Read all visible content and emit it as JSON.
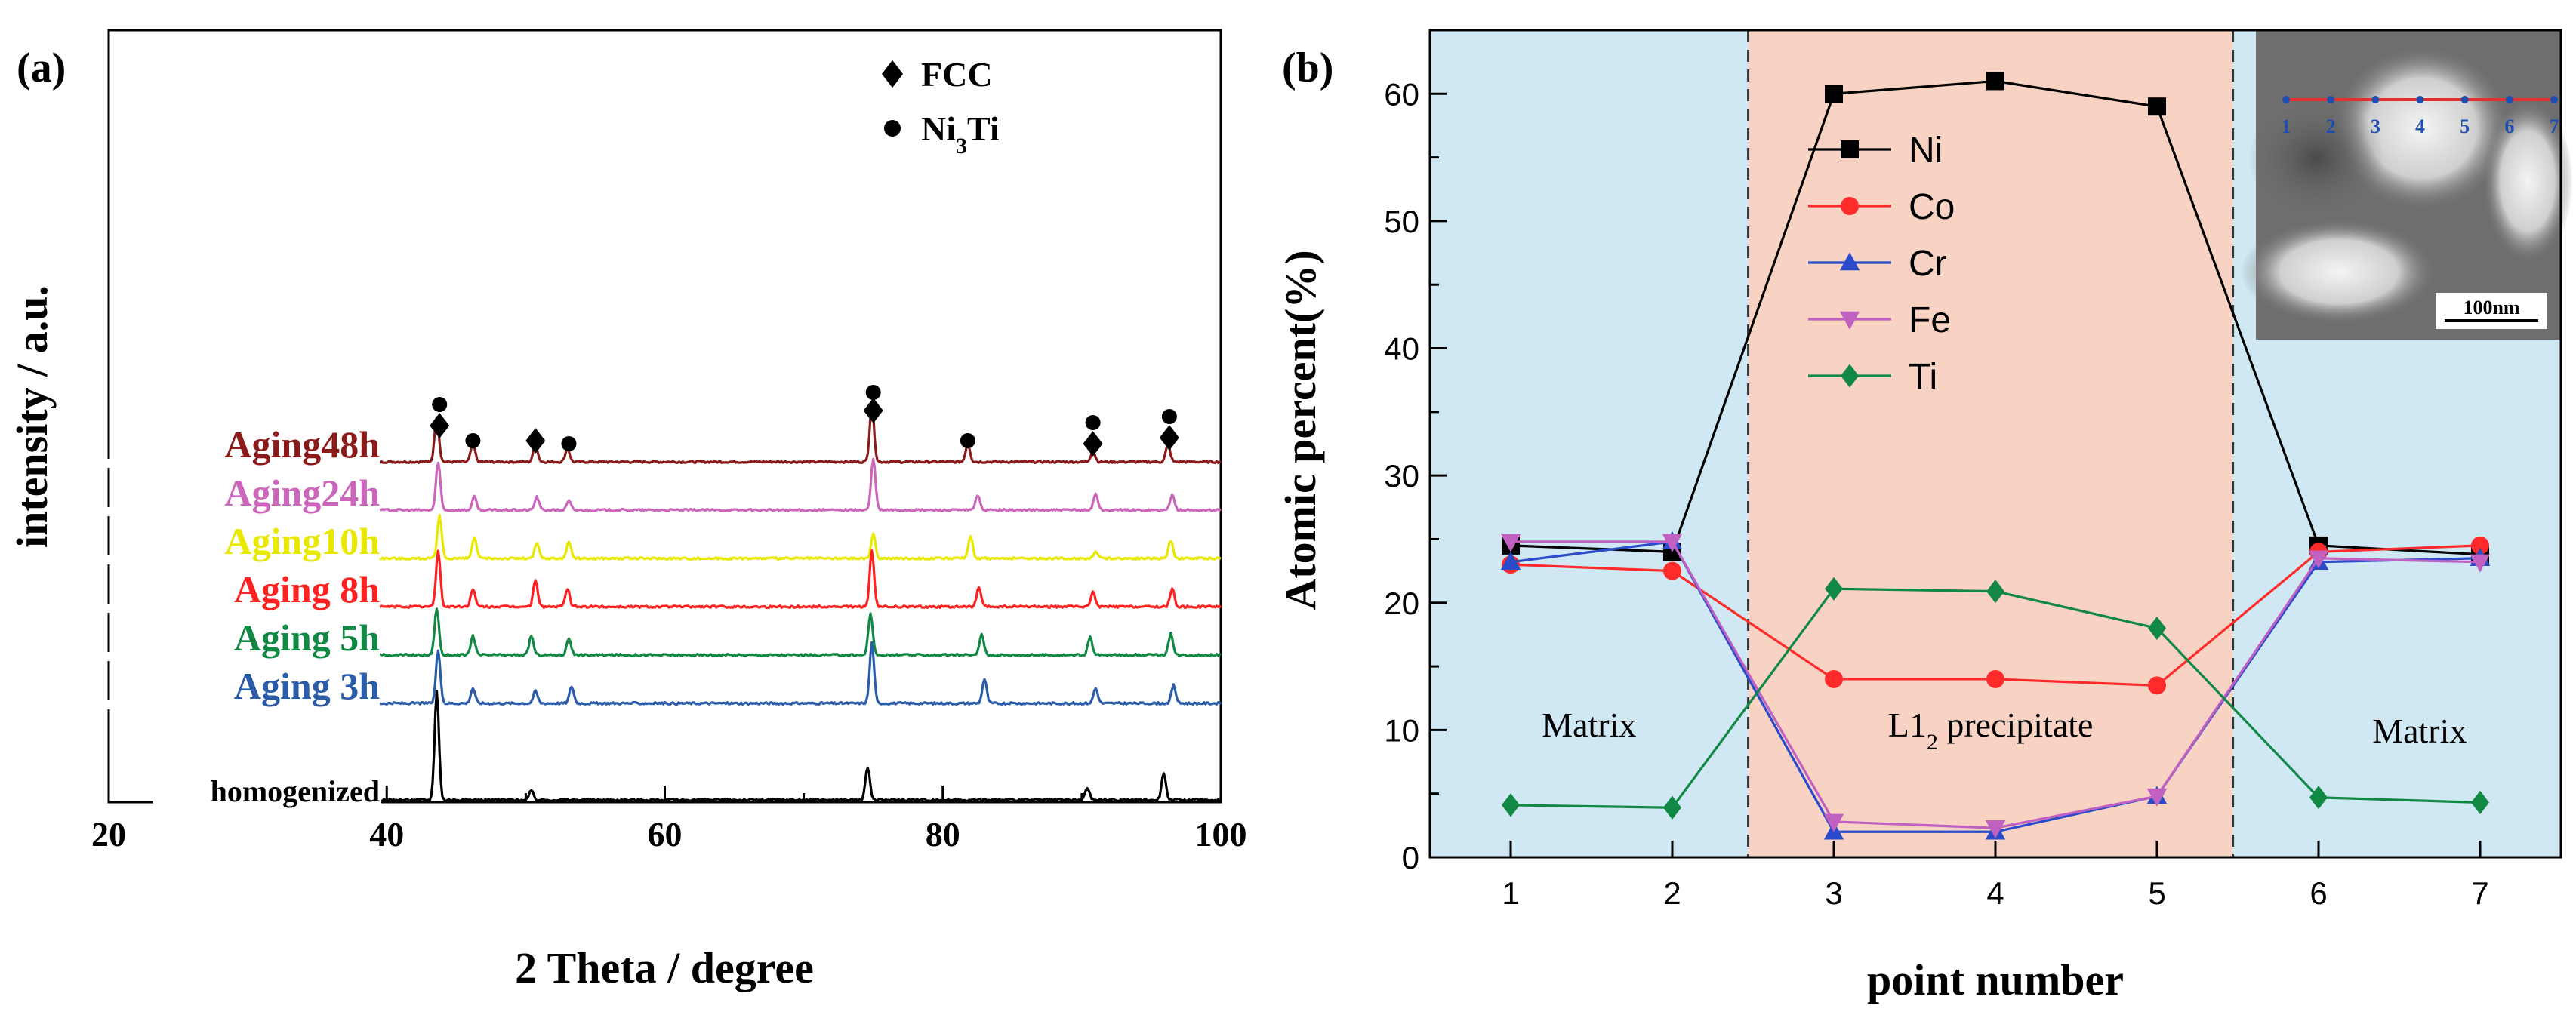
{
  "chart_data": [
    {
      "panel": "(a)",
      "type": "line",
      "title": "",
      "xlabel": "2 Theta / degree",
      "ylabel": "intensity / a.u.",
      "xlim": [
        20,
        100
      ],
      "xticks": [
        20,
        40,
        60,
        80,
        100
      ],
      "grid": false,
      "legend": {
        "position": "top-right",
        "entries": [
          {
            "marker": "diamond",
            "label": "FCC"
          },
          {
            "marker": "circle",
            "label_main": "Ni",
            "label_sub": "3",
            "label_end": "Ti"
          }
        ]
      },
      "series": [
        {
          "name": "Aging48h",
          "color": "#8b1a1a",
          "offset": 5.6,
          "peaks": [
            [
              43.6,
              0.75
            ],
            [
              46.2,
              0.3
            ],
            [
              50.7,
              0.28
            ],
            [
              53.0,
              0.22
            ],
            [
              74.9,
              0.95
            ],
            [
              81.8,
              0.3
            ],
            [
              90.8,
              0.18
            ],
            [
              96.2,
              0.28
            ]
          ]
        },
        {
          "name": "Aging24h",
          "color": "#cc66bb",
          "offset": 4.8,
          "peaks": [
            [
              43.7,
              0.8
            ],
            [
              46.3,
              0.22
            ],
            [
              50.8,
              0.22
            ],
            [
              53.1,
              0.15
            ],
            [
              75.0,
              0.85
            ],
            [
              82.5,
              0.25
            ],
            [
              91.0,
              0.28
            ],
            [
              96.5,
              0.25
            ]
          ]
        },
        {
          "name": "Aging10h",
          "color": "#e8e800",
          "offset": 4.0,
          "peaks": [
            [
              43.8,
              0.7
            ],
            [
              46.3,
              0.35
            ],
            [
              50.8,
              0.25
            ],
            [
              53.1,
              0.28
            ],
            [
              75.0,
              0.4
            ],
            [
              82.0,
              0.38
            ],
            [
              91.0,
              0.12
            ],
            [
              96.4,
              0.3
            ]
          ]
        },
        {
          "name": "Aging 8h",
          "color": "#ff2020",
          "offset": 3.2,
          "peaks": [
            [
              43.7,
              0.92
            ],
            [
              46.2,
              0.3
            ],
            [
              50.7,
              0.45
            ],
            [
              53.0,
              0.3
            ],
            [
              74.9,
              0.92
            ],
            [
              82.6,
              0.32
            ],
            [
              90.8,
              0.25
            ],
            [
              96.5,
              0.3
            ]
          ]
        },
        {
          "name": "Aging 5h",
          "color": "#118844",
          "offset": 2.4,
          "peaks": [
            [
              43.6,
              0.78
            ],
            [
              46.2,
              0.32
            ],
            [
              50.4,
              0.32
            ],
            [
              53.1,
              0.28
            ],
            [
              74.8,
              0.7
            ],
            [
              82.8,
              0.35
            ],
            [
              90.6,
              0.3
            ],
            [
              96.4,
              0.35
            ]
          ]
        },
        {
          "name": "Aging 3h",
          "color": "#2a5caa",
          "offset": 1.6,
          "peaks": [
            [
              43.7,
              0.88
            ],
            [
              46.2,
              0.25
            ],
            [
              50.7,
              0.2
            ],
            [
              53.3,
              0.28
            ],
            [
              74.9,
              1.0
            ],
            [
              83.0,
              0.4
            ],
            [
              91.0,
              0.25
            ],
            [
              96.6,
              0.3
            ]
          ]
        },
        {
          "name": "homogenized",
          "color": "#000000",
          "offset": 0.0,
          "peaks": [
            [
              43.6,
              1.8
            ],
            [
              50.4,
              0.15
            ],
            [
              74.6,
              0.55
            ],
            [
              90.4,
              0.2
            ],
            [
              95.9,
              0.45
            ]
          ]
        }
      ],
      "annotations": [
        {
          "marker": "diamond",
          "x": 43.8,
          "level": 6.2
        },
        {
          "marker": "circle",
          "x": 43.8,
          "level": 6.55
        },
        {
          "marker": "circle",
          "x": 46.2,
          "level": 5.95
        },
        {
          "marker": "diamond",
          "x": 50.7,
          "level": 5.95
        },
        {
          "marker": "circle",
          "x": 53.1,
          "level": 5.9
        },
        {
          "marker": "diamond",
          "x": 75.0,
          "level": 6.45
        },
        {
          "marker": "circle",
          "x": 75.0,
          "level": 6.75
        },
        {
          "marker": "circle",
          "x": 81.8,
          "level": 5.95
        },
        {
          "marker": "diamond",
          "x": 90.8,
          "level": 5.9
        },
        {
          "marker": "circle",
          "x": 90.8,
          "level": 6.25
        },
        {
          "marker": "diamond",
          "x": 96.3,
          "level": 6.0
        },
        {
          "marker": "circle",
          "x": 96.3,
          "level": 6.35
        }
      ]
    },
    {
      "panel": "(b)",
      "type": "line",
      "title": "",
      "xlabel": "point number",
      "ylabel": "Atomic percent(%)",
      "xlim": [
        0.5,
        7.5
      ],
      "ylim": [
        0,
        65
      ],
      "xticks": [
        1,
        2,
        3,
        4,
        5,
        6,
        7
      ],
      "yticks": [
        0,
        10,
        20,
        30,
        40,
        50,
        60
      ],
      "grid": false,
      "categories": [
        1,
        2,
        3,
        4,
        5,
        6,
        7
      ],
      "series": [
        {
          "name": "Ni",
          "color": "#000000",
          "marker": "square",
          "values": [
            24.5,
            24.0,
            60.0,
            61.0,
            59.0,
            24.5,
            23.8
          ]
        },
        {
          "name": "Co",
          "color": "#ff2a2a",
          "marker": "circle",
          "values": [
            23.0,
            22.5,
            14.0,
            14.0,
            13.5,
            24.0,
            24.5
          ]
        },
        {
          "name": "Cr",
          "color": "#2a4ccc",
          "marker": "triangle-up",
          "values": [
            23.2,
            24.8,
            2.0,
            2.0,
            4.8,
            23.2,
            23.5
          ]
        },
        {
          "name": "Fe",
          "color": "#c060c0",
          "marker": "triangle-down",
          "values": [
            24.8,
            24.8,
            2.8,
            2.3,
            4.8,
            23.5,
            23.2
          ]
        },
        {
          "name": "Ti",
          "color": "#118844",
          "marker": "diamond",
          "values": [
            4.1,
            3.9,
            21.1,
            20.9,
            18.0,
            4.7,
            4.3
          ]
        }
      ],
      "regions": [
        {
          "label": "Matrix",
          "x_from": 0.5,
          "x_to": 2.47,
          "color": "#cfe8f3"
        },
        {
          "label_main": "L1",
          "label_sub": "2",
          "label_end": " precipitate",
          "x_from": 2.47,
          "x_to": 5.47,
          "color": "#f8d3c4"
        },
        {
          "label": "Matrix",
          "x_from": 5.47,
          "x_to": 7.5,
          "color": "#cfe8f3"
        }
      ],
      "legend": {
        "position": "center-left",
        "entries": [
          "Ni",
          "Co",
          "Cr",
          "Fe",
          "Ti"
        ]
      },
      "inset": {
        "points": [
          "1",
          "2",
          "3",
          "4",
          "5",
          "6",
          "7"
        ],
        "scale_bar": "100nm"
      }
    }
  ]
}
